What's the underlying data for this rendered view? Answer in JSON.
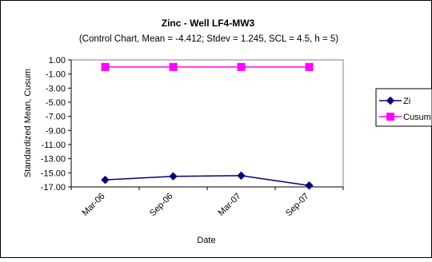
{
  "chart_data": {
    "type": "line",
    "title": "Zinc - Well LF4-MW3",
    "subtitle": "(Control Chart, Mean = -4.412; Stdev = 1.245, SCL = 4.5, h = 5)",
    "xlabel": "Date",
    "ylabel": "Standardized Mean, Cusum",
    "categories": [
      "Mar-06",
      "Sep-06",
      "Mar-07",
      "Sep-07"
    ],
    "ylim": [
      -17,
      1
    ],
    "yticks": [
      "1.00",
      "-1.00",
      "-3.00",
      "-5.00",
      "-7.00",
      "-9.00",
      "-11.00",
      "-13.00",
      "-15.00",
      "-17.00"
    ],
    "grid": false,
    "legend_position": "right",
    "series": [
      {
        "name": "Zi",
        "values": [
          -16.0,
          -15.5,
          -15.4,
          -16.8
        ],
        "color": "#000080",
        "marker": "diamond"
      },
      {
        "name": "Cusum",
        "values": [
          0,
          0,
          0,
          0
        ],
        "color": "#ff00ff",
        "marker": "square"
      }
    ]
  }
}
